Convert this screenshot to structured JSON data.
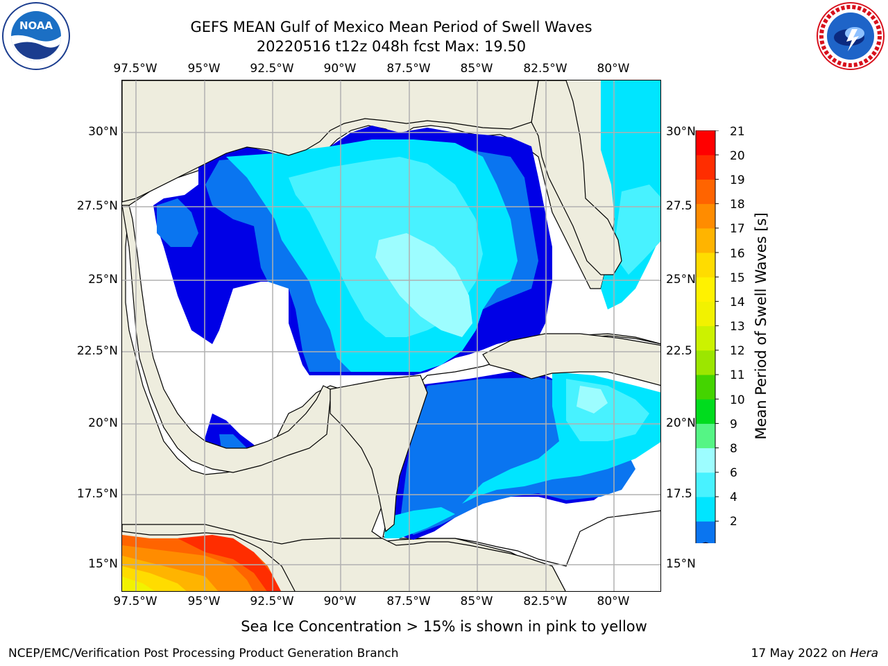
{
  "header": {
    "title_line1": "GEFS MEAN Gulf of Mexico Mean Period of Swell Waves",
    "title_line2": "20220516 t12z 048h fcst   Max: 19.50"
  },
  "logos": {
    "left": {
      "name": "NOAA",
      "ring_text": "NATIONAL OCEANIC AND ATMOSPHERIC ADMINISTRATION · U.S. DEPARTMENT OF COMMERCE"
    },
    "right": {
      "name": "NATIONAL WEATHER SERVICE"
    }
  },
  "map": {
    "lon_ticks": [
      "97.5°W",
      "95°W",
      "92.5°W",
      "90°W",
      "87.5°W",
      "85°W",
      "82.5°W",
      "80°W"
    ],
    "lat_ticks_left": [
      "30°N",
      "27.5°N",
      "25°N",
      "22.5°N",
      "20°N",
      "17.5°N",
      "15°N"
    ],
    "lat_ticks_right": [
      "30°N",
      "27.5",
      "25°N",
      "22.5",
      "20°N",
      "17.5",
      "15°N"
    ],
    "colors": {
      "land": "#eeedde",
      "water_missing": "#ffffff",
      "grid": "#b0b0b0"
    }
  },
  "colorbar": {
    "title": "Mean Period of Swell Waves [s]",
    "labels": [
      "21",
      "20",
      "19",
      "18",
      "17",
      "16",
      "15",
      "14",
      "13",
      "12",
      "11",
      "10",
      "9",
      "8",
      "6",
      "4",
      "2"
    ],
    "colors": [
      "#0000e6",
      "#0a75f0",
      "#00e5ff",
      "#48f2ff",
      "#9dfdff",
      "#55f585",
      "#00dc1e",
      "#44d400",
      "#9ce600",
      "#ccf200",
      "#f2f200",
      "#fff200",
      "#ffdc00",
      "#ffb400",
      "#ff8c00",
      "#ff6400",
      "#ff2d00",
      "#ff0000"
    ]
  },
  "footer": {
    "note": "Sea Ice Concentration > 15% is shown in pink to yellow",
    "org": "NCEP/EMC/Verification Post Processing Product Generation Branch",
    "date": "17 May 2022 on",
    "host": "Hera"
  }
}
